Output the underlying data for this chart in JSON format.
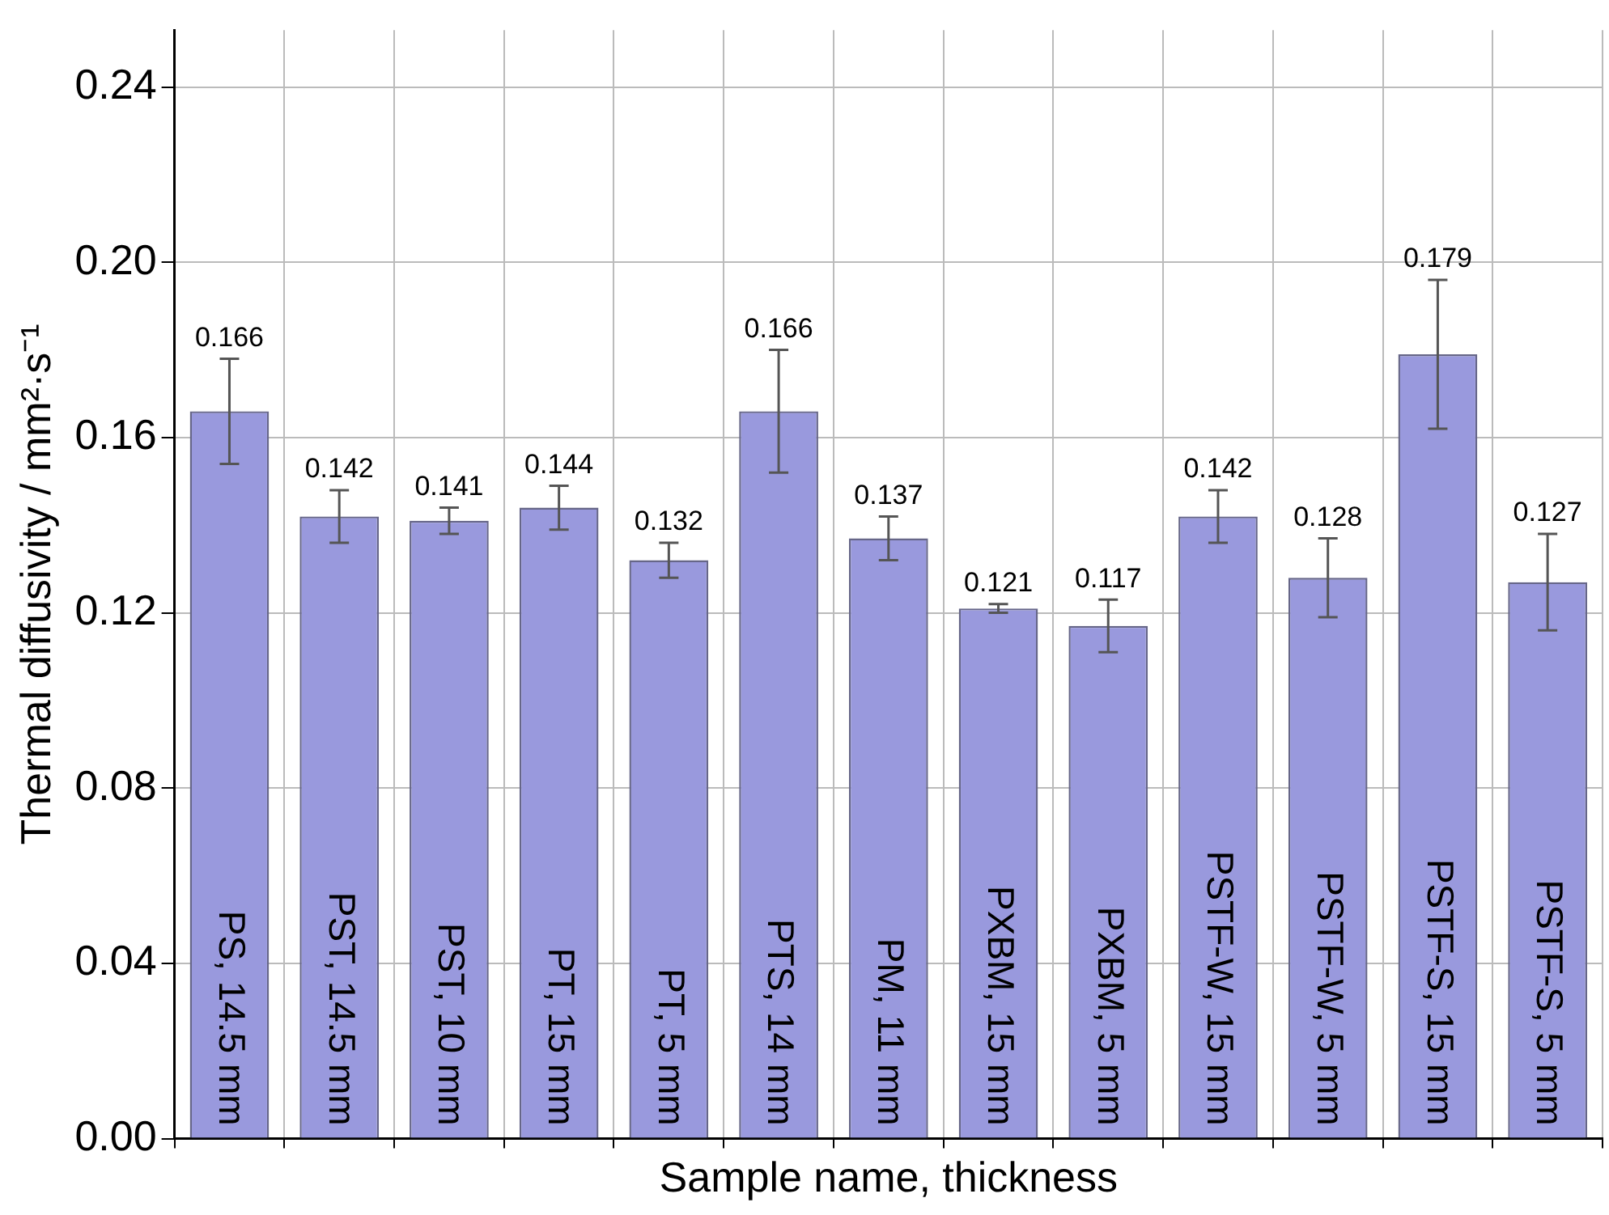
{
  "chart_data": {
    "type": "bar",
    "xlabel": "Sample name, thickness",
    "ylabel": "Thermal diffusivity / mm²·s⁻¹",
    "categories": [
      "PS, 14.5 mm",
      "PST, 14.5 mm",
      "PST, 10 mm",
      "PT, 15 mm",
      "PT, 5 mm",
      "PTS, 14 mm",
      "PM, 11 mm",
      "PXBM, 15 mm",
      "PXBM, 5 mm",
      "PSTF-W, 15 mm",
      "PSTF-W, 5 mm",
      "PSTF-S, 15 mm",
      "PSTF-S, 5 mm"
    ],
    "values": [
      0.166,
      0.142,
      0.141,
      0.144,
      0.132,
      0.166,
      0.137,
      0.121,
      0.117,
      0.142,
      0.128,
      0.179,
      0.127
    ],
    "errors": [
      0.012,
      0.006,
      0.003,
      0.005,
      0.004,
      0.014,
      0.005,
      0.001,
      0.006,
      0.006,
      0.009,
      0.017,
      0.011
    ],
    "color": "#9999dd",
    "data_labels": true,
    "ylim": [
      0,
      0.253
    ],
    "yticks": [
      {
        "value": 0,
        "label": "0.00"
      },
      {
        "value": 0.04,
        "label": "0.04"
      },
      {
        "value": 0.08,
        "label": "0.08"
      },
      {
        "value": 0.12,
        "label": "0.12"
      },
      {
        "value": 0.16,
        "label": "0.16"
      },
      {
        "value": 0.2,
        "label": "0.20"
      },
      {
        "value": 0.24,
        "label": "0.24"
      }
    ],
    "grid": true,
    "legend": false
  }
}
